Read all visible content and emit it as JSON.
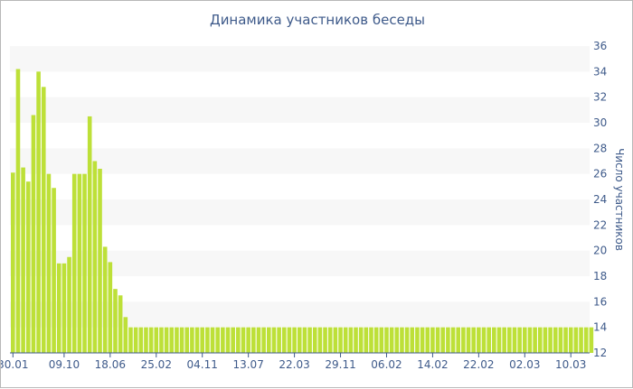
{
  "chart_data": {
    "type": "bar",
    "title": "Динамика участников беседы",
    "xlabel": "",
    "ylabel": "Число участников",
    "ylim": [
      12,
      36
    ],
    "y_ticks": [
      12,
      14,
      16,
      18,
      20,
      22,
      24,
      26,
      28,
      30,
      32,
      34,
      36
    ],
    "y_axis_side": "right",
    "grid": "horizontal alternating bands",
    "legend": "none",
    "bar_color": "#bde038",
    "band_color": "#f7f7f7",
    "x_tick_labels": [
      {
        "label": "30.01",
        "index": 0
      },
      {
        "label": "09.10",
        "index": 10
      },
      {
        "label": "18.06",
        "index": 19
      },
      {
        "label": "25.02",
        "index": 28
      },
      {
        "label": "04.11",
        "index": 37
      },
      {
        "label": "13.07",
        "index": 46
      },
      {
        "label": "22.03",
        "index": 55
      },
      {
        "label": "29.11",
        "index": 64
      },
      {
        "label": "06.02",
        "index": 73
      },
      {
        "label": "14.02",
        "index": 82
      },
      {
        "label": "22.02",
        "index": 91
      },
      {
        "label": "02.03",
        "index": 100
      },
      {
        "label": "10.03",
        "index": 109
      }
    ],
    "values": [
      26.1,
      34.2,
      26.5,
      25.4,
      30.6,
      34.0,
      32.8,
      26.0,
      24.9,
      19.0,
      19.0,
      19.5,
      26.0,
      26.0,
      26.0,
      30.5,
      27.0,
      26.4,
      20.3,
      19.1,
      17.0,
      16.5,
      14.8,
      14.0,
      14.0,
      14.0,
      14.0,
      14.0,
      14.0,
      14.0,
      14.0,
      14.0,
      14.0,
      14.0,
      14.0,
      14.0,
      14.0,
      14.0,
      14.0,
      14.0,
      14.0,
      14.0,
      14.0,
      14.0,
      14.0,
      14.0,
      14.0,
      14.0,
      14.0,
      14.0,
      14.0,
      14.0,
      14.0,
      14.0,
      14.0,
      14.0,
      14.0,
      14.0,
      14.0,
      14.0,
      14.0,
      14.0,
      14.0,
      14.0,
      14.0,
      14.0,
      14.0,
      14.0,
      14.0,
      14.0,
      14.0,
      14.0,
      14.0,
      14.0,
      14.0,
      14.0,
      14.0,
      14.0,
      14.0,
      14.0,
      14.0,
      14.0,
      14.0,
      14.0,
      14.0,
      14.0,
      14.0,
      14.0,
      14.0,
      14.0,
      14.0,
      14.0,
      14.0,
      14.0,
      14.0,
      14.0,
      14.0,
      14.0,
      14.0,
      14.0,
      14.0,
      14.0,
      14.0,
      14.0,
      14.0,
      14.0,
      14.0,
      14.0,
      14.0,
      14.0,
      14.0,
      14.0,
      14.0,
      14.0
    ]
  }
}
